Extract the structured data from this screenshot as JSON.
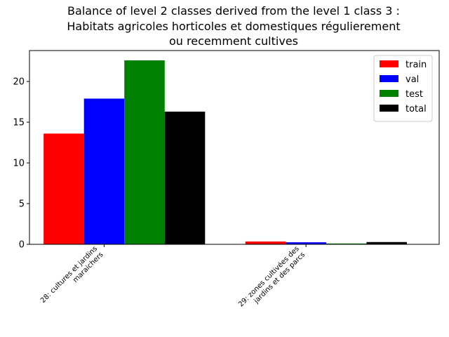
{
  "chart_data": {
    "type": "bar",
    "title_lines": [
      "Balance of level 2 classes derived from the level 1 class 3 :",
      "Habitats agricoles horticoles et domestiques régulierement",
      "ou recemment cultives"
    ],
    "categories": [
      [
        "28: cultures et jardins",
        "maraichers"
      ],
      [
        "29: zones cultivées des",
        "jardins et des parcs"
      ]
    ],
    "series": [
      {
        "name": "train",
        "color": "#ff0000",
        "values": [
          13.6,
          0.35
        ]
      },
      {
        "name": "val",
        "color": "#0000ff",
        "values": [
          17.9,
          0.25
        ]
      },
      {
        "name": "test",
        "color": "#008000",
        "values": [
          22.6,
          0.1
        ]
      },
      {
        "name": "total",
        "color": "#000000",
        "values": [
          16.3,
          0.28
        ]
      }
    ],
    "yticks": [
      0,
      5,
      10,
      15,
      20
    ],
    "ylim": [
      0,
      23.8
    ],
    "legend_position": "top-right",
    "grid": false
  }
}
